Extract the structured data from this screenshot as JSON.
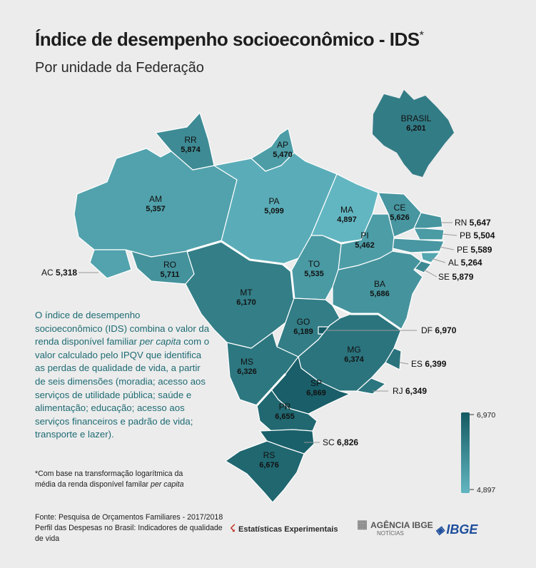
{
  "header": {
    "title": "Índice de desempenho socioeconômico - IDS",
    "title_mark": "*",
    "subtitle": "Por unidade da Federação"
  },
  "description_parts": {
    "before": "O índice de desempenho socioeconômico (IDS) combina o valor da renda disponível familiar ",
    "italic": "per capita",
    "after": " com o valor calculado pelo IPQV que identifica as perdas de qualidade de vida, a partir de seis dimensões (moradia; acesso aos serviços de utilidade pública; saúde e alimentação; educação; acesso aos serviços financeiros e padrão de vida; transporte e lazer)."
  },
  "note": {
    "before": "*Com base na transformação logarítmica da média da renda disponível familar ",
    "italic": "per capita"
  },
  "source": {
    "line1": "Fonte: Pesquisa de Orçamentos Familiares - 2017/2018",
    "line2": "Perfil das Despesas no Brasil: Indicadores de qualidade de vida"
  },
  "logos": {
    "experimental": "Estatísticas Experimentais",
    "agencia": "AGÊNCIA IBGE",
    "agencia_sub": "NOTÍCIAS",
    "ibge": "IBGE"
  },
  "colors": {
    "low": "#62b6c1",
    "high": "#155a63",
    "border": "#ffffff",
    "accent": "#1e6b73"
  },
  "legend": {
    "max": "6,970",
    "min": "4,897"
  },
  "national": {
    "label": "BRASIL",
    "value": "6,201",
    "num": 6.201
  },
  "states": [
    {
      "uf": "RR",
      "value": "5,874",
      "num": 5.874
    },
    {
      "uf": "AP",
      "value": "5,470",
      "num": 5.47
    },
    {
      "uf": "AM",
      "value": "5,357",
      "num": 5.357
    },
    {
      "uf": "PA",
      "value": "5,099",
      "num": 5.099
    },
    {
      "uf": "MA",
      "value": "4,897",
      "num": 4.897
    },
    {
      "uf": "CE",
      "value": "5,626",
      "num": 5.626
    },
    {
      "uf": "PI",
      "value": "5,462",
      "num": 5.462
    },
    {
      "uf": "RO",
      "value": "5,711",
      "num": 5.711
    },
    {
      "uf": "TO",
      "value": "5,535",
      "num": 5.535
    },
    {
      "uf": "BA",
      "value": "5,686",
      "num": 5.686
    },
    {
      "uf": "MT",
      "value": "6,170",
      "num": 6.17
    },
    {
      "uf": "GO",
      "value": "6,189",
      "num": 6.189
    },
    {
      "uf": "MG",
      "value": "6,374",
      "num": 6.374
    },
    {
      "uf": "MS",
      "value": "6,326",
      "num": 6.326
    },
    {
      "uf": "SP",
      "value": "6,869",
      "num": 6.869
    },
    {
      "uf": "PR",
      "value": "6,655",
      "num": 6.655
    },
    {
      "uf": "RS",
      "value": "6,676",
      "num": 6.676
    },
    {
      "uf": "AC",
      "value": "5,318",
      "num": 5.318
    },
    {
      "uf": "RN",
      "value": "5,647",
      "num": 5.647
    },
    {
      "uf": "PB",
      "value": "5,504",
      "num": 5.504
    },
    {
      "uf": "PE",
      "value": "5,589",
      "num": 5.589
    },
    {
      "uf": "AL",
      "value": "5,264",
      "num": 5.264
    },
    {
      "uf": "SE",
      "value": "5,879",
      "num": 5.879
    },
    {
      "uf": "DF",
      "value": "6,970",
      "num": 6.97
    },
    {
      "uf": "ES",
      "value": "6,399",
      "num": 6.399
    },
    {
      "uf": "RJ",
      "value": "6,349",
      "num": 6.349
    },
    {
      "uf": "SC",
      "value": "6,826",
      "num": 6.826
    }
  ]
}
